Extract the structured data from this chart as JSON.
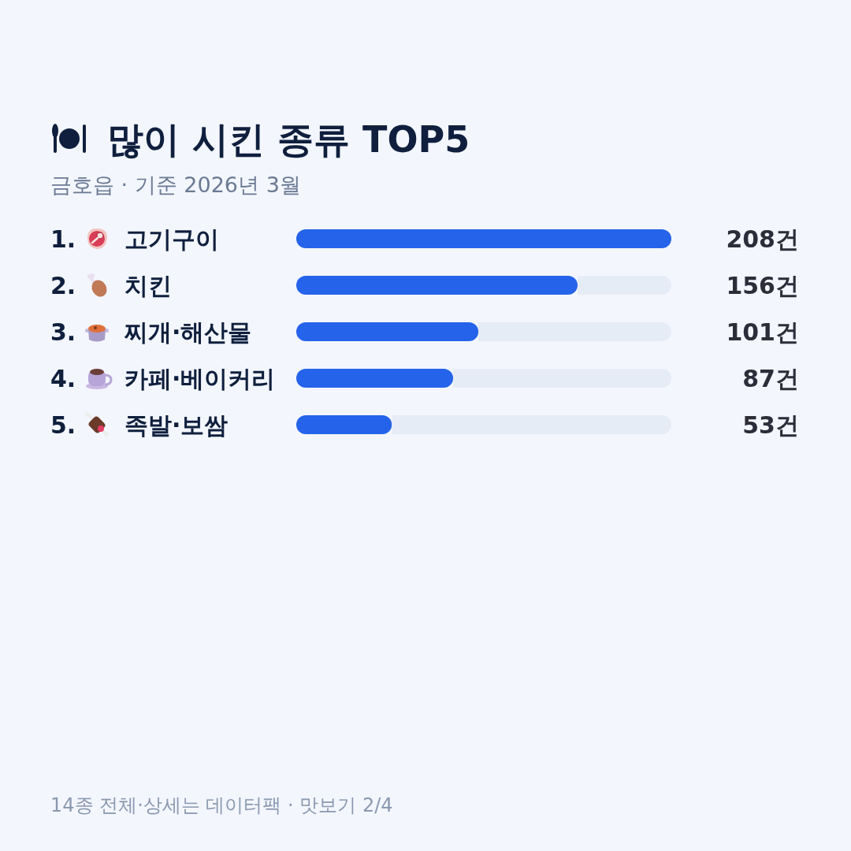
{
  "chart_data": {
    "type": "bar",
    "orientation": "horizontal",
    "stacked": true,
    "title": "많이 시킨 종류 TOP5",
    "subtitle": "금호읍 · 기준 2026년 3월",
    "categories": [
      "고기구이",
      "치킨",
      "찌개·해산물",
      "카페·베이커리",
      "족발·보쌈"
    ],
    "series": [
      {
        "color": "#2563eb",
        "values": [
          208,
          156,
          101,
          87,
          53
        ],
        "value_labels": [
          "208건",
          "156건",
          "101건",
          "87건",
          "53건"
        ]
      },
      {
        "color": "#e6ecf6",
        "values": [
          0,
          52,
          107,
          121,
          155
        ]
      }
    ],
    "annotations": [
      "1.",
      "2.",
      "3.",
      "4.",
      "5.",
      "14종 전체·상세는 데이터팩 · 맛보기 2/4"
    ]
  }
}
